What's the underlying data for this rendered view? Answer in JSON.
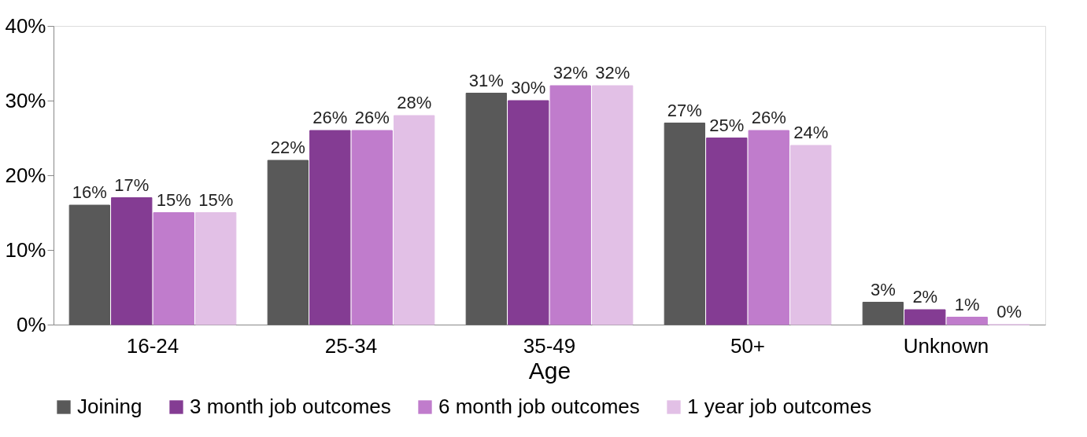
{
  "chart_data": {
    "type": "bar",
    "xlabel": "Age",
    "categories": [
      "16-24",
      "25-34",
      "35-49",
      "50+",
      "Unknown"
    ],
    "series": [
      {
        "name": "Joining",
        "color": "#595959",
        "values": [
          16,
          22,
          31,
          27,
          3
        ],
        "value_labels": [
          "16%",
          "22%",
          "31%",
          "27%",
          "3%"
        ]
      },
      {
        "name": "3 month job outcomes",
        "color": "#843c93",
        "values": [
          17,
          26,
          30,
          25,
          2
        ],
        "value_labels": [
          "17%",
          "26%",
          "30%",
          "25%",
          "2%"
        ]
      },
      {
        "name": "6 month job outcomes",
        "color": "#c07ccc",
        "values": [
          15,
          26,
          32,
          26,
          1
        ],
        "value_labels": [
          "15%",
          "26%",
          "32%",
          "26%",
          "1%"
        ]
      },
      {
        "name": "1 year job outcomes",
        "color": "#e2c0e6",
        "values": [
          15,
          28,
          32,
          24,
          0
        ],
        "value_labels": [
          "15%",
          "28%",
          "32%",
          "24%",
          "0%"
        ]
      }
    ],
    "ylim": [
      0,
      40
    ],
    "yticks": [
      {
        "value": 0,
        "label": "0%"
      },
      {
        "value": 10,
        "label": "10%"
      },
      {
        "value": 20,
        "label": "20%"
      },
      {
        "value": 30,
        "label": "30%"
      },
      {
        "value": 40,
        "label": "40%"
      }
    ],
    "grid": false,
    "legend": "bottom"
  }
}
